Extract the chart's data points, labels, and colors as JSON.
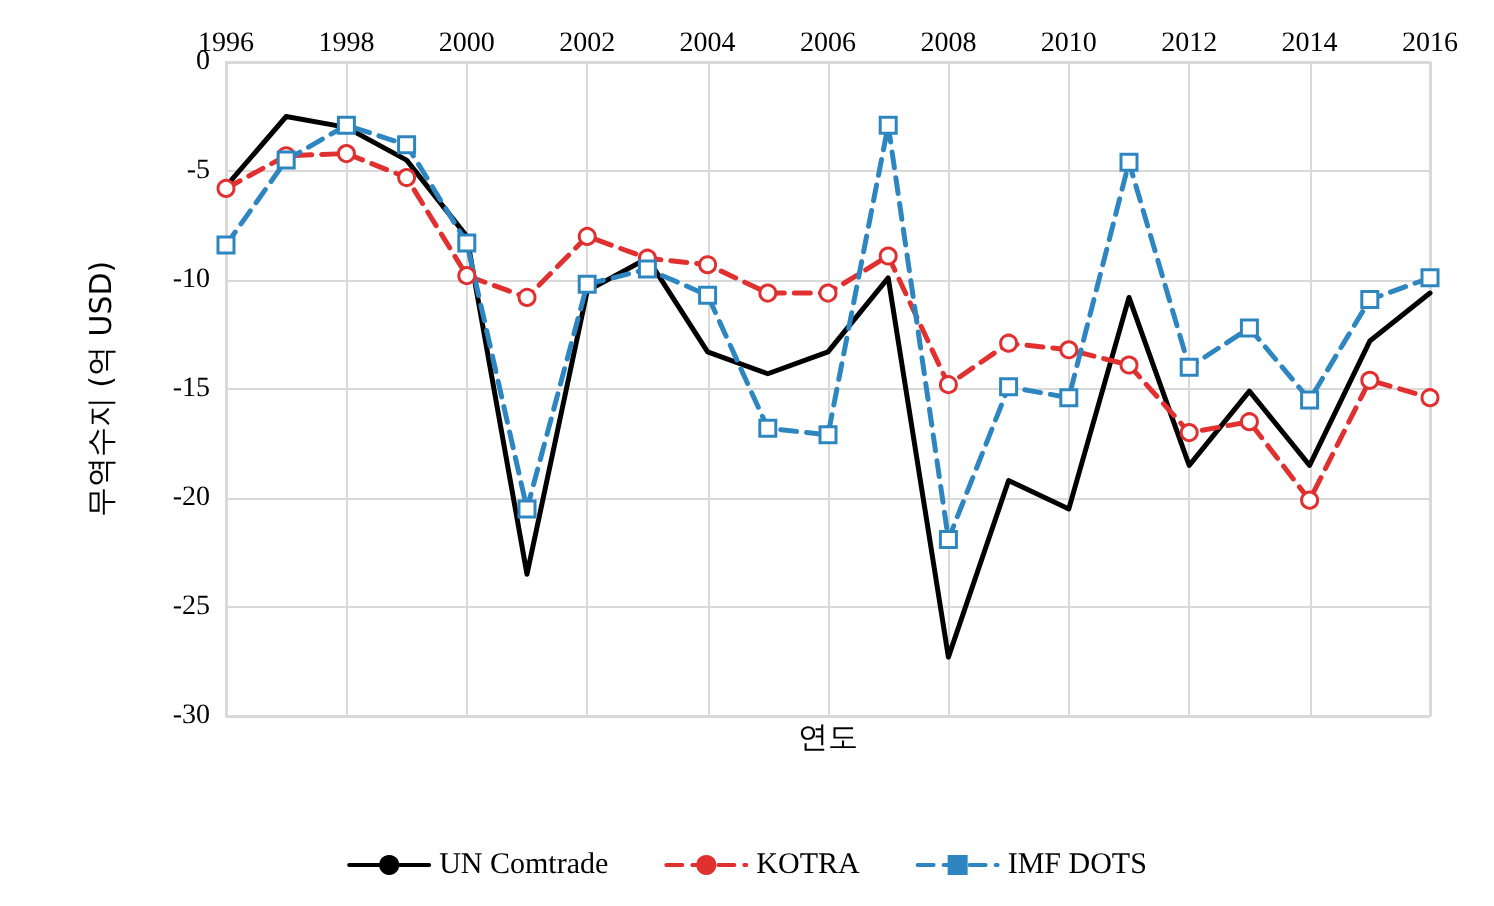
{
  "chart_data": {
    "type": "line",
    "xlabel": "연도",
    "ylabel": "무역수지 (억 USD)",
    "x": [
      1996,
      1997,
      1998,
      1999,
      2000,
      2001,
      2002,
      2003,
      2004,
      2005,
      2006,
      2007,
      2008,
      2009,
      2010,
      2011,
      2012,
      2013,
      2014,
      2015,
      2016
    ],
    "xlim": [
      1996,
      2016
    ],
    "xticks": [
      1996,
      1998,
      2000,
      2002,
      2004,
      2006,
      2008,
      2010,
      2012,
      2014,
      2016
    ],
    "ylim": [
      -30,
      0
    ],
    "yticks": [
      -30,
      -25,
      -20,
      -15,
      -10,
      -5,
      0
    ],
    "grid": true,
    "legend": "bottom",
    "series": [
      {
        "name": "UN Comtrade",
        "color": "#000000",
        "marker": "none",
        "line_style": "solid",
        "values": [
          -5.7,
          -2.5,
          -3.0,
          -4.5,
          -8.0,
          -23.5,
          -10.5,
          -9.0,
          -13.3,
          -14.3,
          -13.3,
          -9.9,
          -27.3,
          -19.2,
          -20.5,
          -10.8,
          -18.5,
          -15.1,
          -18.5,
          -12.8,
          -10.6
        ]
      },
      {
        "name": "KOTRA",
        "color": "#e03030",
        "marker": "circle",
        "line_style": "dashed",
        "values": [
          -5.8,
          -4.3,
          -4.2,
          -5.3,
          -9.8,
          -10.8,
          -8.0,
          -9.0,
          -9.3,
          -10.6,
          -10.6,
          -8.9,
          -14.8,
          -12.9,
          -13.2,
          -13.9,
          -17.0,
          -16.5,
          -20.1,
          -14.6,
          -15.4
        ]
      },
      {
        "name": "IMF DOTS",
        "color": "#2e86c1",
        "marker": "square",
        "line_style": "dashed",
        "values": [
          -8.4,
          -4.5,
          -2.9,
          -3.8,
          -8.3,
          -20.5,
          -10.2,
          -9.5,
          -10.7,
          -16.8,
          -17.1,
          -2.9,
          -21.9,
          -14.9,
          -15.4,
          -4.6,
          -14.0,
          -12.2,
          -15.5,
          -10.9,
          -9.9
        ]
      }
    ]
  }
}
